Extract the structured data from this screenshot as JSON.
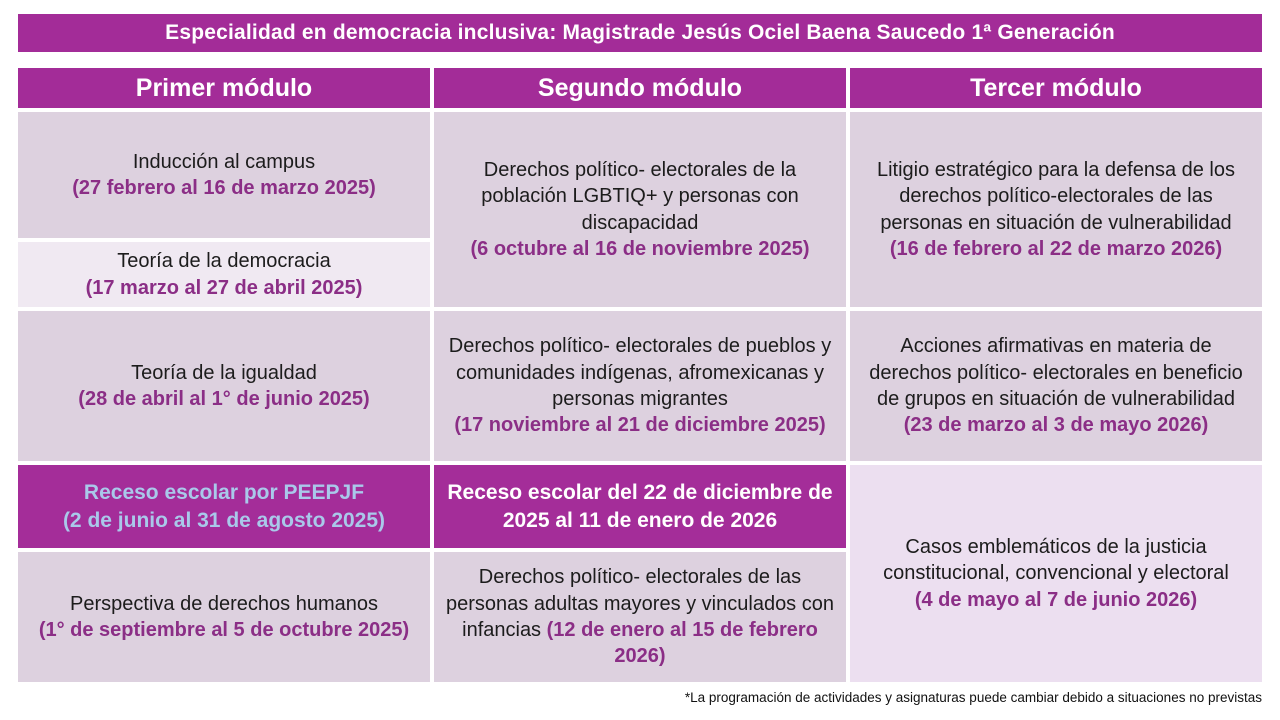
{
  "header": {
    "title": "Especialidad en democracia inclusiva: Magistrade Jesús Ociel Baena Saucedo 1ª Generación"
  },
  "columns": [
    {
      "label": "Primer módulo"
    },
    {
      "label": "Segundo módulo"
    },
    {
      "label": "Tercer módulo"
    }
  ],
  "module1": [
    {
      "title": "Inducción al campus",
      "date": "(27 febrero al 16 de marzo 2025)"
    },
    {
      "title": "Teoría de la democracia",
      "date": "(17 marzo al 27 de abril 2025)"
    },
    {
      "title": "Teoría de la igualdad",
      "date": "(28 de abril al 1° de junio 2025)"
    },
    {
      "title": "Receso escolar por PEEPJF",
      "date": "(2 de junio al 31 de agosto 2025)"
    },
    {
      "title": "Perspectiva de derechos humanos",
      "date": "(1° de septiembre al 5 de octubre 2025)"
    }
  ],
  "module2": [
    {
      "title": "Derechos político- electorales de la población LGBTIQ+ y personas con discapacidad",
      "date": "(6 octubre al 16 de noviembre 2025)"
    },
    {
      "title": "Derechos político- electorales de pueblos y comunidades indígenas, afromexicanas y personas migrantes",
      "date": "(17 noviembre al 21 de diciembre 2025)"
    },
    {
      "title": "Receso escolar del 22 de diciembre de 2025 al 11 de enero de 2026",
      "date": ""
    },
    {
      "title": "Derechos político- electorales de las personas adultas mayores y vinculados con infancias",
      "date": "(12 de enero al 15 de febrero 2026)"
    }
  ],
  "module3": [
    {
      "title": "Litigio estratégico para la defensa de los derechos político-electorales de las personas en situación de vulnerabilidad",
      "date": "(16 de febrero al 22 de marzo 2026)"
    },
    {
      "title": "Acciones afirmativas en materia de derechos político- electorales en beneficio de grupos en situación de vulnerabilidad",
      "date": "(23 de marzo al 3 de mayo 2026)"
    },
    {
      "title": "Casos emblemáticos de la justicia constitucional, convencional y electoral",
      "date": "(4 de mayo al 7 de junio 2026)"
    }
  ],
  "footnote": "*La programación de actividades y asignaturas puede cambiar debido a situaciones no previstas",
  "colors": {
    "accent_magenta": "#a32c98",
    "cell_lavender": "#ddd1df",
    "cell_light": "#f0e9f2",
    "cell_lilac": "#ecdff0",
    "date_purple": "#8b2e86",
    "receso_blue_text": "#a9c9ea"
  }
}
